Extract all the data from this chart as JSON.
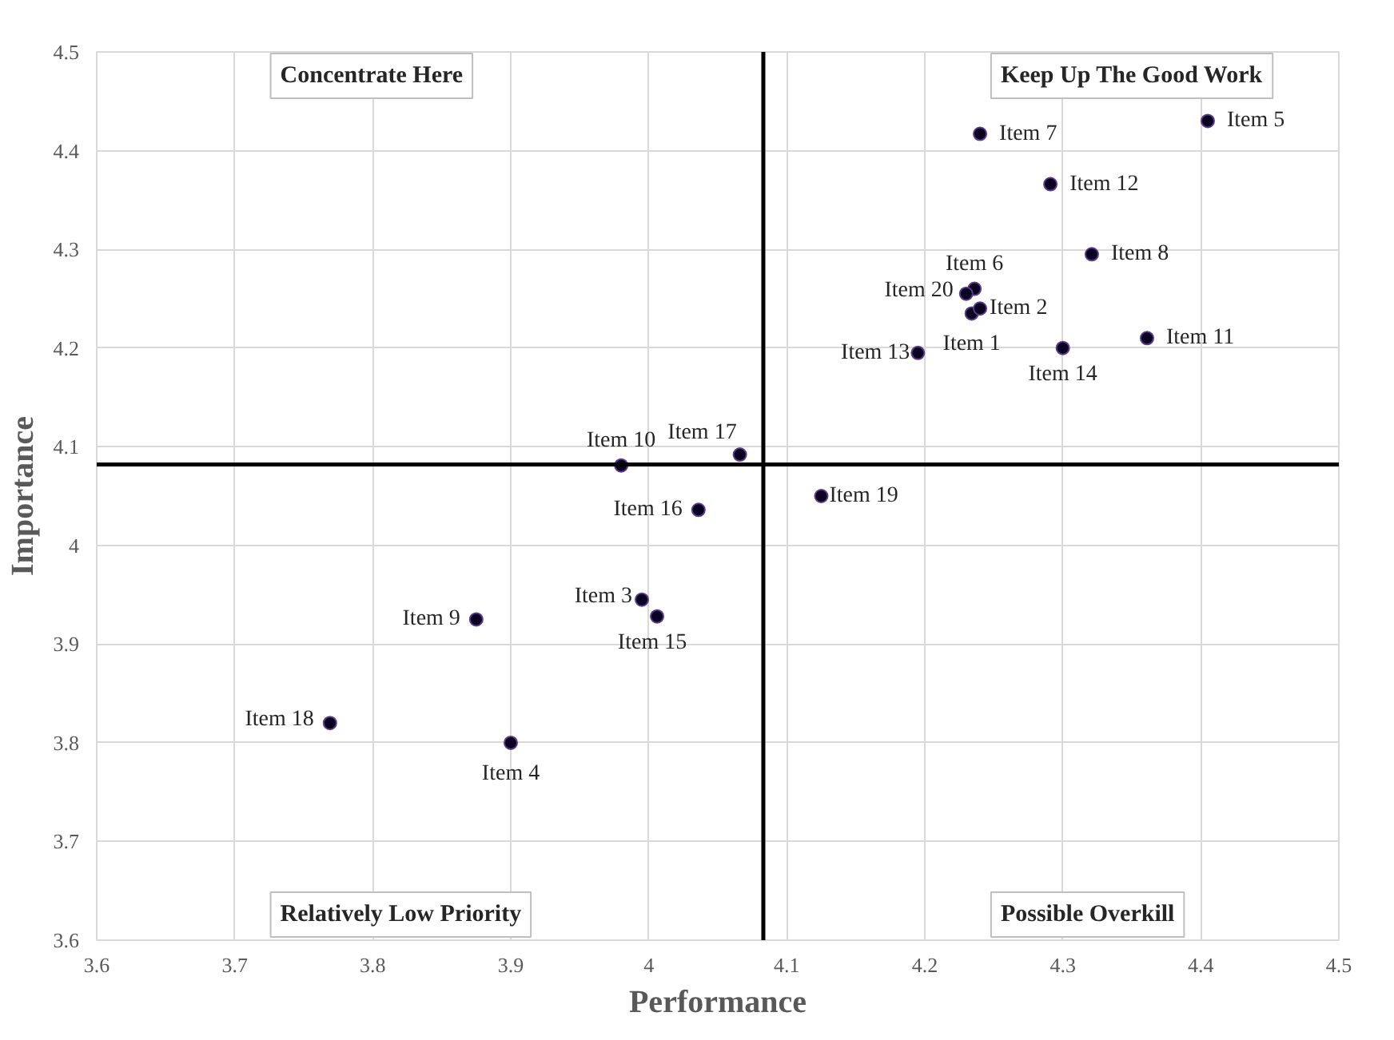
{
  "chart_data": {
    "type": "scatter",
    "xlabel": "Performance",
    "ylabel": "Importance",
    "xlim": [
      3.6,
      4.5
    ],
    "ylim": [
      3.6,
      4.5
    ],
    "xticks": [
      3.6,
      3.7,
      3.8,
      3.9,
      4,
      4.1,
      4.2,
      4.3,
      4.4,
      4.5
    ],
    "yticks": [
      3.6,
      3.7,
      3.8,
      3.9,
      4,
      4.1,
      4.2,
      4.3,
      4.4,
      4.5
    ],
    "grid": true,
    "marker": "circle",
    "series": [
      {
        "color": "#0a0020",
        "x": [
          4.234,
          4.24,
          3.995,
          3.9,
          4.405,
          4.236,
          4.24,
          4.321,
          3.875,
          3.98,
          4.361,
          4.291,
          4.195,
          4.3,
          4.006,
          4.036,
          4.066,
          3.769,
          4.125,
          4.23
        ],
        "values": [
          4.235,
          4.24,
          3.945,
          3.8,
          4.43,
          4.26,
          4.417,
          4.295,
          3.925,
          4.081,
          4.21,
          4.366,
          4.195,
          4.2,
          3.928,
          4.036,
          4.092,
          3.82,
          4.05,
          4.255
        ]
      }
    ],
    "ref_lines": [
      {
        "axis": "x",
        "value": 4.083,
        "color": "#000000"
      },
      {
        "axis": "y",
        "value": 4.082,
        "color": "#000000"
      }
    ],
    "annotations": [
      {
        "text": "Item 1",
        "x": 4.234,
        "y": 4.235
      },
      {
        "text": "Item 2",
        "x": 4.24,
        "y": 4.24
      },
      {
        "text": "Item 3",
        "x": 3.995,
        "y": 3.945
      },
      {
        "text": "Item 4",
        "x": 3.9,
        "y": 3.8
      },
      {
        "text": "Item 5",
        "x": 4.405,
        "y": 4.43
      },
      {
        "text": "Item 6",
        "x": 4.236,
        "y": 4.26
      },
      {
        "text": "Item 7",
        "x": 4.24,
        "y": 4.417
      },
      {
        "text": "Item 8",
        "x": 4.321,
        "y": 4.295
      },
      {
        "text": "Item 9",
        "x": 3.875,
        "y": 3.925
      },
      {
        "text": "Item 10",
        "x": 3.98,
        "y": 4.081
      },
      {
        "text": "Item 11",
        "x": 4.361,
        "y": 4.21
      },
      {
        "text": "Item 12",
        "x": 4.291,
        "y": 4.366
      },
      {
        "text": "Item 13",
        "x": 4.195,
        "y": 4.195
      },
      {
        "text": "Item 14",
        "x": 4.3,
        "y": 4.2
      },
      {
        "text": "Item 15",
        "x": 4.006,
        "y": 3.928
      },
      {
        "text": "Item 16",
        "x": 4.036,
        "y": 4.036
      },
      {
        "text": "Item 17",
        "x": 4.066,
        "y": 4.092
      },
      {
        "text": "Item 18",
        "x": 3.769,
        "y": 3.82
      },
      {
        "text": "Item 19",
        "x": 4.125,
        "y": 4.05
      },
      {
        "text": "Item 20",
        "x": 4.23,
        "y": 4.255
      },
      "Concentrate Here",
      "Keep Up The Good Work",
      "Relatively Low Priority",
      "Possible Overkill"
    ]
  }
}
